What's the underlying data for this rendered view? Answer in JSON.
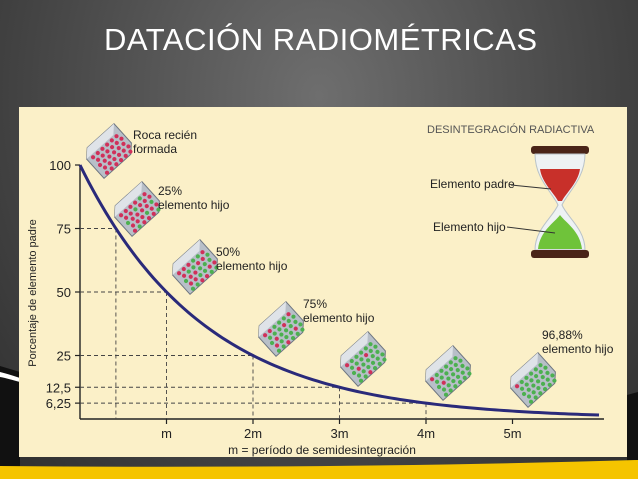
{
  "slide": {
    "title": "DATACIÓN RADIOMÉTRICAS"
  },
  "figure": {
    "header": "DESINTEGRACIÓN RADIACTIVA",
    "hourglass": {
      "top_label": "Elemento padre",
      "bottom_label": "Elemento hijo"
    },
    "stages": [
      {
        "line1": "Roca recién",
        "line2": "formada"
      },
      {
        "line1": "25%",
        "line2": "elemento hijo"
      },
      {
        "line1": "50%",
        "line2": "elemento hijo"
      },
      {
        "line1": "75%",
        "line2": "elemento hijo"
      },
      {
        "line1": "96,88%",
        "line2": "elemento hijo"
      }
    ]
  },
  "colors": {
    "curve": "#2a2a7a",
    "panel": "#fbf0c8",
    "parent_atom": "#d0305a",
    "daughter_atom": "#4cb050",
    "accent_yellow": "#f5c400"
  },
  "chart_data": {
    "type": "line",
    "xlabel": "m = período de semidesintegración",
    "ylabel": "Porcentaje de elemento padre",
    "x_ticks": [
      {
        "value": 1,
        "label": "m"
      },
      {
        "value": 2,
        "label": "2m"
      },
      {
        "value": 3,
        "label": "3m"
      },
      {
        "value": 4,
        "label": "4m"
      },
      {
        "value": 5,
        "label": "5m"
      }
    ],
    "y_ticks": [
      {
        "value": 100,
        "label": "100"
      },
      {
        "value": 75,
        "label": "75"
      },
      {
        "value": 50,
        "label": "50"
      },
      {
        "value": 25,
        "label": "25"
      },
      {
        "value": 12.5,
        "label": "12,5"
      },
      {
        "value": 6.25,
        "label": "6,25"
      }
    ],
    "xlim": [
      0,
      6.05
    ],
    "ylim": [
      0,
      100
    ],
    "series": [
      {
        "x": [
          0,
          0.415,
          1,
          2,
          3,
          4,
          5,
          6
        ],
        "y": [
          100,
          75,
          50,
          25,
          12.5,
          6.25,
          3.125,
          1.5625
        ]
      }
    ],
    "guides": [
      {
        "x": 0.415,
        "y": 75
      },
      {
        "x": 1,
        "y": 50
      },
      {
        "x": 2,
        "y": 25
      },
      {
        "x": 3,
        "y": 12.5
      },
      {
        "x": 4,
        "y": 6.25
      }
    ]
  }
}
